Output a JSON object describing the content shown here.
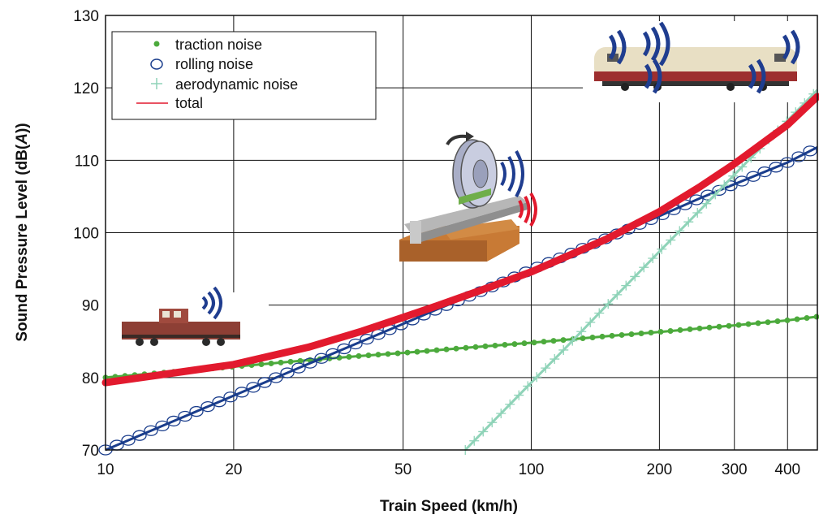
{
  "chart_data": {
    "type": "line",
    "title": "",
    "xlabel": "Train Speed (km/h)",
    "ylabel_parts": [
      "Sound Pressure Level (dB(",
      "A",
      "))"
    ],
    "x_scale": "log",
    "xlim": [
      10,
      470
    ],
    "ylim": [
      70,
      130
    ],
    "x_ticks": [
      10,
      20,
      50,
      100,
      200,
      300,
      400
    ],
    "y_ticks": [
      70,
      80,
      90,
      100,
      110,
      120,
      130
    ],
    "grid": true,
    "legend_position": "top-left",
    "series": [
      {
        "name": "traction noise",
        "marker": "dot",
        "color": "#4caa3c",
        "x": [
          10,
          20,
          30,
          40,
          50,
          70,
          100,
          150,
          200,
          300,
          400,
          470
        ],
        "y": [
          80,
          81.5,
          82.4,
          83,
          83.4,
          84.1,
          84.8,
          85.7,
          86.3,
          87.2,
          87.9,
          88.4
        ]
      },
      {
        "name": "rolling noise",
        "marker": "circle",
        "color": "#1a3d8c",
        "x": [
          10,
          20,
          30,
          40,
          50,
          60,
          80,
          100,
          120,
          150,
          200,
          250,
          300,
          400,
          470
        ],
        "y": [
          70,
          77.5,
          81.9,
          85,
          87.4,
          89.4,
          92.4,
          94.9,
          96.8,
          99.2,
          102.3,
          104.8,
          106.7,
          109.7,
          111.8
        ]
      },
      {
        "name": "aerodynamic noise",
        "marker": "plus",
        "color": "#8fd3b8",
        "x": [
          70,
          80,
          100,
          120,
          150,
          200,
          250,
          300,
          400,
          470
        ],
        "y": [
          70,
          73.5,
          79.3,
          84,
          89.9,
          97.4,
          103.2,
          108,
          115.5,
          119.7
        ]
      },
      {
        "name": "total",
        "marker": "none",
        "color": "#e21a2e",
        "x": [
          10,
          20,
          30,
          40,
          50,
          60,
          80,
          100,
          150,
          200,
          250,
          300,
          400,
          470
        ],
        "y": [
          79.3,
          81.8,
          84.2,
          86.4,
          88.3,
          89.9,
          92.5,
          94.6,
          99.1,
          102.9,
          106.4,
          109.5,
          114.9,
          118.8
        ]
      }
    ]
  },
  "images": {
    "diesel_locomotive": "diesel-locomotive-image",
    "wheel_rail": "wheel-rail-image",
    "electric_locomotive": "electric-locomotive-image"
  }
}
